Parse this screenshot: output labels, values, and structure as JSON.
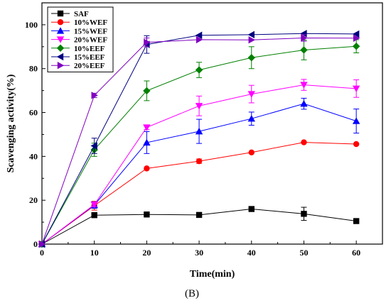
{
  "chart_data": {
    "type": "line",
    "xlabel": "Time(min)",
    "ylabel": "Scavenging activity(%)",
    "panel_label": "(B)",
    "xlim": [
      0,
      65
    ],
    "ylim": [
      0,
      110
    ],
    "xticks": [
      0,
      10,
      20,
      30,
      40,
      50,
      60
    ],
    "yticks": [
      0,
      20,
      40,
      60,
      80,
      100
    ],
    "grid": false,
    "legend_position": "top-left",
    "x": [
      0,
      10,
      20,
      30,
      40,
      50,
      60
    ],
    "series": [
      {
        "name": "SAF",
        "color": "#000000",
        "marker": "square",
        "values": [
          0,
          13.2,
          13.5,
          13.3,
          16.0,
          13.8,
          10.5
        ],
        "errors": [
          0,
          0,
          0,
          0,
          0,
          3,
          0
        ]
      },
      {
        "name": "10%WEF",
        "color": "#ff0000",
        "marker": "circle",
        "values": [
          0,
          17.5,
          34.5,
          37.8,
          41.8,
          46.4,
          45.6
        ],
        "errors": [
          0,
          2,
          0,
          1,
          0,
          0,
          0
        ]
      },
      {
        "name": "15%WEF",
        "color": "#0000ff",
        "marker": "triangle-up",
        "values": [
          0,
          17.8,
          46.3,
          51.4,
          57.2,
          64.0,
          56.1
        ],
        "errors": [
          0,
          1.5,
          5,
          5.5,
          3,
          2.5,
          5.5
        ]
      },
      {
        "name": "20%WEF",
        "color": "#ff00ff",
        "marker": "triangle-down",
        "values": [
          0,
          18.0,
          53.2,
          63.0,
          68.4,
          72.6,
          70.9
        ],
        "errors": [
          0,
          1,
          1,
          4.5,
          4,
          2.5,
          4
        ]
      },
      {
        "name": "10%EEF",
        "color": "#008000",
        "marker": "diamond",
        "values": [
          0,
          43.0,
          69.9,
          79.4,
          85.0,
          88.5,
          90.2
        ],
        "errors": [
          0,
          3,
          4.5,
          3.5,
          5,
          4.5,
          3
        ]
      },
      {
        "name": "15%EEF",
        "color": "#000080",
        "marker": "triangle-left",
        "values": [
          0,
          44.8,
          91.0,
          95.2,
          95.5,
          96.0,
          95.8
        ],
        "errors": [
          0,
          3.5,
          4,
          0,
          0,
          0,
          0
        ]
      },
      {
        "name": "20%EEF",
        "color": "#8000c0",
        "marker": "triangle-right",
        "values": [
          0,
          67.8,
          92.0,
          93.2,
          93.1,
          94.0,
          93.9
        ],
        "errors": [
          0,
          1,
          2,
          0,
          0,
          1.5,
          0
        ]
      }
    ]
  }
}
